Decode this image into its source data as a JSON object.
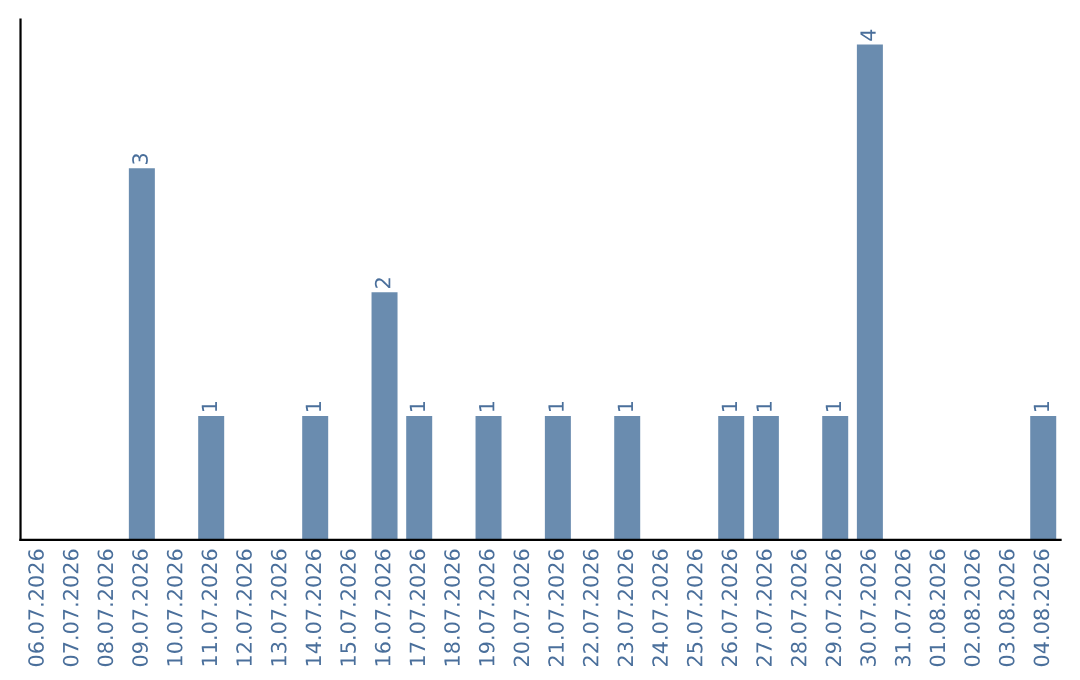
{
  "chart_data": {
    "type": "bar",
    "categories": [
      "06.07.2026",
      "07.07.2026",
      "08.07.2026",
      "09.07.2026",
      "10.07.2026",
      "11.07.2026",
      "12.07.2026",
      "13.07.2026",
      "14.07.2026",
      "15.07.2026",
      "16.07.2026",
      "17.07.2026",
      "18.07.2026",
      "19.07.2026",
      "20.07.2026",
      "21.07.2026",
      "22.07.2026",
      "23.07.2026",
      "24.07.2026",
      "25.07.2026",
      "26.07.2026",
      "27.07.2026",
      "28.07.2026",
      "29.07.2026",
      "30.07.2026",
      "31.07.2026",
      "01.08.2026",
      "02.08.2026",
      "03.08.2026",
      "04.08.2026"
    ],
    "values": [
      0,
      0,
      0,
      3,
      0,
      1,
      0,
      0,
      1,
      0,
      2,
      1,
      0,
      1,
      0,
      1,
      0,
      1,
      0,
      0,
      1,
      1,
      0,
      1,
      4,
      0,
      0,
      0,
      0,
      1
    ],
    "color": "#6a8caf",
    "value_labels": [
      null,
      null,
      null,
      "3",
      null,
      "1",
      null,
      null,
      "1",
      null,
      "2",
      "1",
      null,
      "1",
      null,
      "1",
      null,
      "1",
      null,
      null,
      "1",
      "1",
      null,
      "1",
      "4",
      null,
      null,
      null,
      null,
      "1"
    ],
    "tick_labels": "x",
    "grid": false,
    "legend": false
  }
}
